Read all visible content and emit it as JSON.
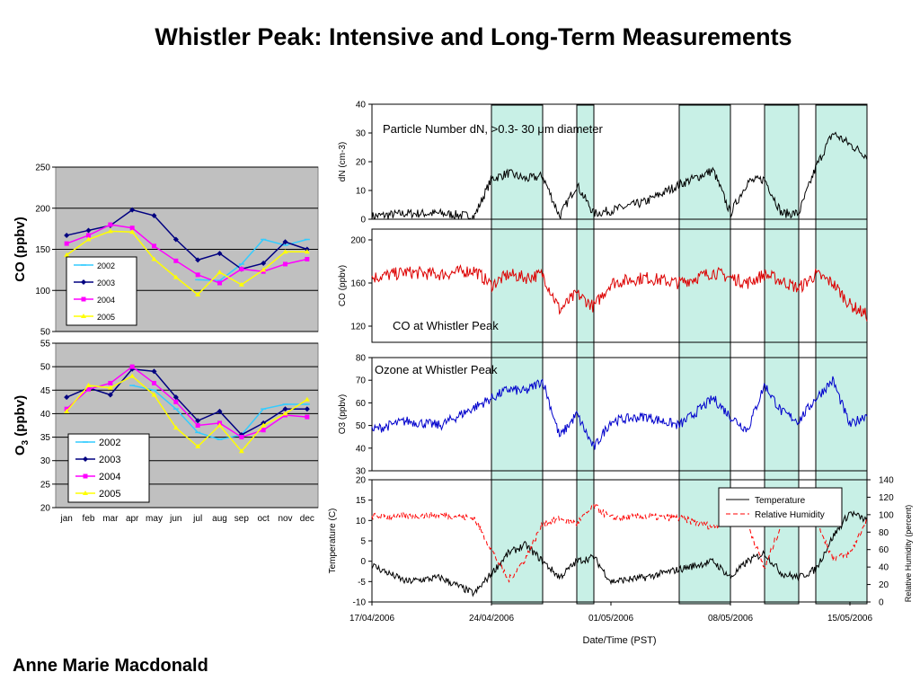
{
  "title": "Whistler Peak: Intensive and Long-Term Measurements",
  "author": "Anne Marie Macdonald",
  "chart_data": [
    {
      "type": "line",
      "ylabel": "CO (ppbv)",
      "ylim": [
        50,
        250
      ],
      "yticks": [
        50,
        100,
        150,
        200,
        250
      ],
      "grid": true,
      "legend": "inside-lower-left",
      "categories": [
        "jan",
        "feb",
        "mar",
        "apr",
        "may",
        "jun",
        "jul",
        "aug",
        "sep",
        "oct",
        "nov",
        "dec"
      ],
      "series": [
        {
          "name": "2002",
          "color": "#33ccff",
          "marker": "line",
          "values": [
            null,
            null,
            null,
            null,
            null,
            null,
            113,
            112,
            132,
            162,
            155,
            162
          ]
        },
        {
          "name": "2003",
          "color": "#000080",
          "marker": "diamond",
          "values": [
            167,
            173,
            179,
            198,
            191,
            162,
            137,
            145,
            126,
            133,
            159,
            150
          ]
        },
        {
          "name": "2004",
          "color": "#ff00ff",
          "marker": "square",
          "values": [
            157,
            167,
            180,
            176,
            154,
            136,
            119,
            109,
            126,
            123,
            132,
            138
          ]
        },
        {
          "name": "2005",
          "color": "#ffff00",
          "marker": "triangle",
          "values": [
            143,
            162,
            172,
            171,
            138,
            116,
            95,
            122,
            107,
            125,
            147,
            147
          ]
        }
      ]
    },
    {
      "type": "line",
      "ylabel": "O3 (ppbv)",
      "ylim": [
        20,
        55
      ],
      "yticks": [
        20,
        25,
        30,
        35,
        40,
        45,
        50,
        55
      ],
      "grid": true,
      "legend": "inside-lower-left",
      "categories": [
        "jan",
        "feb",
        "mar",
        "apr",
        "may",
        "jun",
        "jul",
        "aug",
        "sep",
        "oct",
        "nov",
        "dec"
      ],
      "series": [
        {
          "name": "2002",
          "color": "#33ccff",
          "marker": "line",
          "values": [
            null,
            null,
            null,
            46,
            45,
            41,
            36,
            34.5,
            35.5,
            41,
            42,
            42
          ]
        },
        {
          "name": "2003",
          "color": "#000080",
          "marker": "diamond",
          "values": [
            43.5,
            45.5,
            44,
            49.5,
            49,
            43.5,
            38.5,
            40.5,
            35.5,
            38,
            41,
            41
          ]
        },
        {
          "name": "2004",
          "color": "#ff00ff",
          "marker": "square",
          "values": [
            41,
            45.2,
            46.5,
            50,
            46.5,
            42.5,
            37.5,
            38,
            35,
            36.5,
            39.7,
            39.3
          ]
        },
        {
          "name": "2005",
          "color": "#ffff00",
          "marker": "triangle",
          "values": [
            40.5,
            46,
            45.5,
            48,
            44,
            37,
            33,
            37.5,
            32,
            37.5,
            40,
            43
          ]
        }
      ]
    },
    {
      "type": "line",
      "annotation": "Particle Number dN, >0.3- 30 μm diameter",
      "ylabel": "dN (cm-3)",
      "ylim": [
        0,
        40
      ],
      "yticks": [
        0,
        10,
        20,
        30,
        40
      ],
      "color": "#000000",
      "x": [
        "17/04",
        "19/04",
        "21/04",
        "23/04",
        "24/04",
        "25/04",
        "26/04",
        "27/04",
        "28/04",
        "29/04",
        "30/04",
        "01/05",
        "03/05",
        "05/05",
        "07/05",
        "08/05",
        "09/05",
        "10/05",
        "11/05",
        "12/05",
        "13/05",
        "14/05",
        "15/05",
        "16/05"
      ],
      "values": [
        1,
        2,
        2,
        1,
        14,
        16,
        14,
        15,
        1,
        12,
        2,
        3,
        6,
        12,
        17,
        2,
        13,
        14,
        2,
        2,
        18,
        30,
        26,
        22
      ]
    },
    {
      "type": "line",
      "annotation": "CO at Whistler Peak",
      "ylabel": "CO (ppbv)",
      "ylim": [
        105,
        210
      ],
      "yticks": [
        120,
        160,
        200
      ],
      "color": "#dd0000",
      "x": [
        "17/04",
        "19/04",
        "21/04",
        "23/04",
        "24/04",
        "25/04",
        "26/04",
        "27/04",
        "28/04",
        "29/04",
        "30/04",
        "01/05",
        "03/05",
        "05/05",
        "07/05",
        "08/05",
        "09/05",
        "10/05",
        "11/05",
        "12/05",
        "13/05",
        "14/05",
        "15/05",
        "16/05"
      ],
      "values": [
        165,
        170,
        168,
        172,
        158,
        168,
        165,
        168,
        135,
        150,
        138,
        160,
        165,
        160,
        170,
        165,
        160,
        168,
        162,
        155,
        168,
        160,
        140,
        130
      ]
    },
    {
      "type": "line",
      "annotation": "Ozone at Whistler Peak",
      "ylabel": "O3 (ppbv)",
      "ylim": [
        30,
        80
      ],
      "yticks": [
        30,
        40,
        50,
        60,
        70,
        80
      ],
      "color": "#0000cc",
      "x": [
        "17/04",
        "19/04",
        "21/04",
        "23/04",
        "24/04",
        "25/04",
        "26/04",
        "27/04",
        "28/04",
        "29/04",
        "30/04",
        "01/05",
        "03/05",
        "05/05",
        "07/05",
        "08/05",
        "09/05",
        "10/05",
        "11/05",
        "12/05",
        "13/05",
        "14/05",
        "15/05",
        "16/05"
      ],
      "values": [
        48,
        52,
        50,
        58,
        62,
        66,
        65,
        70,
        45,
        55,
        40,
        52,
        54,
        50,
        62,
        54,
        48,
        68,
        56,
        52,
        62,
        70,
        50,
        55
      ]
    },
    {
      "type": "line",
      "ylabel": "Temperature (C)",
      "y2label": "Relative Humidity (percent)",
      "ylim": [
        -10,
        20
      ],
      "yticks": [
        -10,
        -5,
        0,
        5,
        10,
        15,
        20
      ],
      "y2lim": [
        0,
        140
      ],
      "y2ticks": [
        0,
        20,
        40,
        60,
        80,
        100,
        120,
        140
      ],
      "xlabel": "Date/Time (PST)",
      "xticks": [
        "17/04/2006",
        "24/04/2006",
        "01/05/2006",
        "08/05/2006",
        "15/05/2006"
      ],
      "legend": "top-right",
      "x": [
        "17/04",
        "19/04",
        "21/04",
        "23/04",
        "24/04",
        "25/04",
        "26/04",
        "27/04",
        "28/04",
        "29/04",
        "30/04",
        "01/05",
        "03/05",
        "05/05",
        "07/05",
        "08/05",
        "09/05",
        "10/05",
        "11/05",
        "12/05",
        "13/05",
        "14/05",
        "15/05",
        "16/05"
      ],
      "series": [
        {
          "name": "Temperature",
          "color": "#000000",
          "dash": "solid",
          "axis": "left",
          "values": [
            -1,
            -5,
            -4,
            -8,
            -3,
            2,
            4,
            0,
            -4,
            0,
            1,
            -5,
            -4,
            -2,
            0,
            -4,
            0,
            2,
            -3,
            -4,
            -2,
            6,
            12,
            10
          ]
        },
        {
          "name": "Relative Humidity",
          "color": "#ff0000",
          "dash": "dashed",
          "axis": "right",
          "values": [
            98,
            98,
            100,
            96,
            60,
            25,
            50,
            90,
            95,
            90,
            110,
            96,
            98,
            96,
            86,
            96,
            90,
            38,
            90,
            96,
            95,
            50,
            55,
            95
          ]
        }
      ]
    }
  ],
  "intensive_periods": [
    [
      "24/04",
      "27/04"
    ],
    [
      "29/04",
      "30/04"
    ],
    [
      "05/05",
      "08/05"
    ],
    [
      "10/05",
      "12/05"
    ],
    [
      "13/05",
      "16/05"
    ]
  ]
}
